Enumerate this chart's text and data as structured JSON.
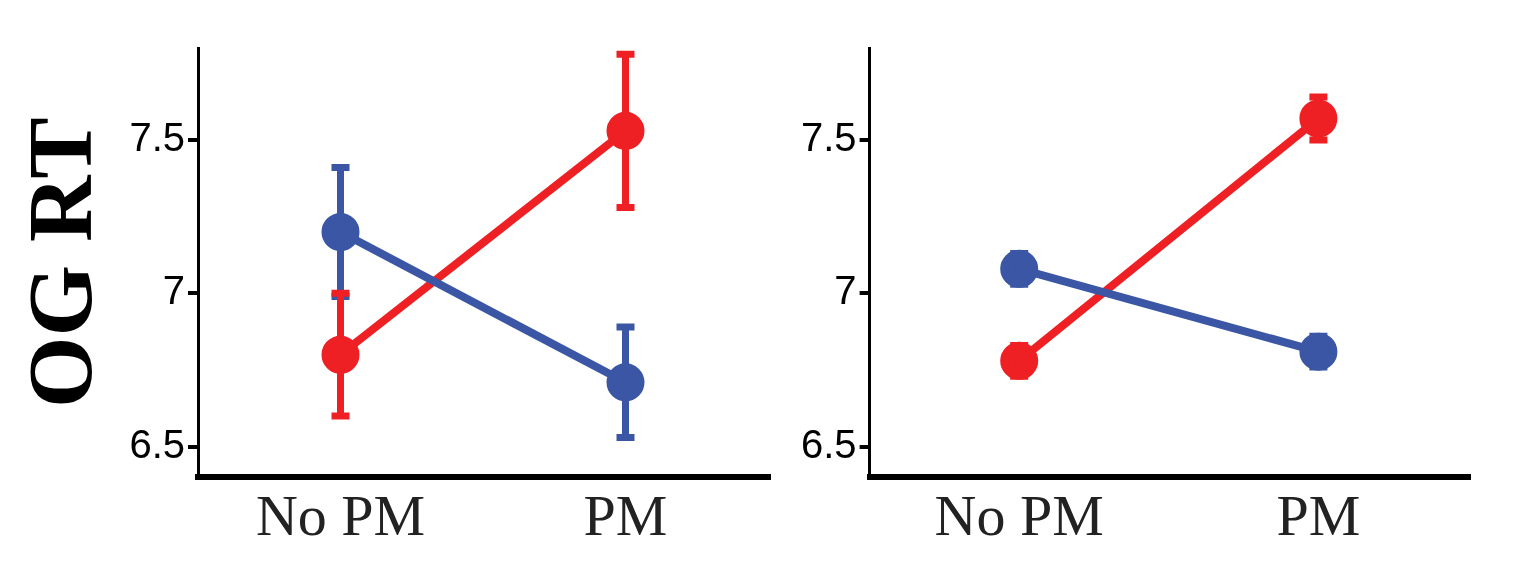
{
  "chart_data": [
    {
      "type": "line",
      "ylabel": "OG RT",
      "categories": [
        "No PM",
        "PM"
      ],
      "ylim": [
        6.4,
        7.8
      ],
      "yticks": [
        6.5,
        7,
        7.5
      ],
      "grid": false,
      "legend": false,
      "marker": "circle",
      "line_style": "solid",
      "series": [
        {
          "color": "#3a56a5",
          "values": [
            7.2,
            6.71
          ],
          "errors": [
            0.21,
            0.18
          ]
        },
        {
          "color": "#ee2024",
          "values": [
            6.8,
            7.53
          ],
          "errors": [
            0.2,
            0.25
          ]
        }
      ]
    },
    {
      "type": "line",
      "categories": [
        "No PM",
        "PM"
      ],
      "ylim": [
        6.4,
        7.8
      ],
      "yticks": [
        6.5,
        7,
        7.5
      ],
      "grid": false,
      "legend": false,
      "marker": "circle",
      "line_style": "solid",
      "series": [
        {
          "color": "#3a56a5",
          "values": [
            7.08,
            6.81
          ],
          "errors": [
            0.05,
            0.05
          ]
        },
        {
          "color": "#ee2024",
          "values": [
            6.78,
            7.57
          ],
          "errors": [
            0.05,
            0.07
          ]
        }
      ]
    }
  ]
}
